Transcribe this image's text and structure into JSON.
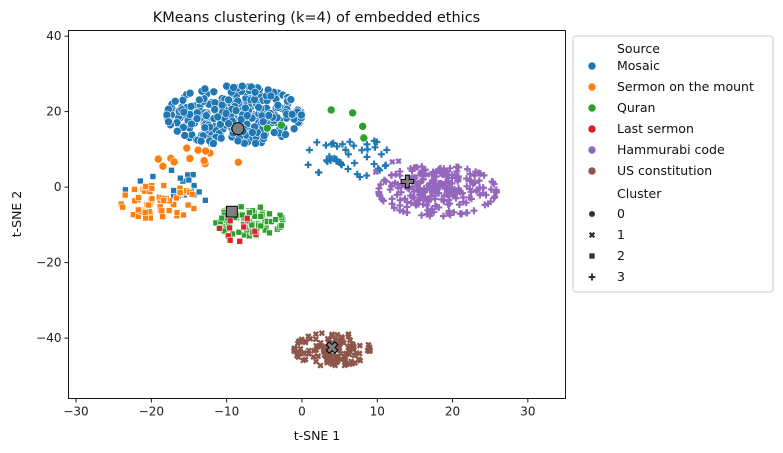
{
  "chart_data": {
    "type": "scatter",
    "title": "KMeans clustering (k=4) of embedded ethics",
    "xlabel": "t-SNE 1",
    "ylabel": "t-SNE 2",
    "xlim": [
      -31,
      35
    ],
    "ylim": [
      -56,
      41.5
    ],
    "xticks": [
      -30,
      -20,
      -10,
      0,
      10,
      20,
      30
    ],
    "yticks": [
      -40,
      -20,
      0,
      20,
      40
    ],
    "grid": false,
    "legend_placement": "outside-right",
    "legend": {
      "source_title": "Source",
      "cluster_title": "Cluster",
      "sources": [
        {
          "name": "Mosaic",
          "color": "#1f77b4"
        },
        {
          "name": "Sermon on the mount",
          "color": "#ff7f0e"
        },
        {
          "name": "Quran",
          "color": "#2ca02c"
        },
        {
          "name": "Last sermon",
          "color": "#d62728"
        },
        {
          "name": "Hammurabi code",
          "color": "#9467bd"
        },
        {
          "name": "US constitution",
          "color": "#8c564b"
        }
      ],
      "clusters": [
        {
          "name": "0",
          "marker": "circle"
        },
        {
          "name": "1",
          "marker": "x"
        },
        {
          "name": "2",
          "marker": "square"
        },
        {
          "name": "3",
          "marker": "plus"
        }
      ]
    },
    "centroids": [
      {
        "cluster": "0",
        "x": -8.5,
        "y": 15.5
      },
      {
        "cluster": "1",
        "x": 4,
        "y": -42.5
      },
      {
        "cluster": "2",
        "x": -9.3,
        "y": -6.5
      },
      {
        "cluster": "3",
        "x": 14,
        "y": 1.5
      }
    ],
    "groups": [
      {
        "source": "Mosaic",
        "cluster": "0",
        "center": [
          -9,
          19
        ],
        "spread": [
          8,
          7
        ],
        "count": 340
      },
      {
        "source": "Mosaic",
        "cluster": "3",
        "center": [
          6,
          8
        ],
        "spread": [
          5,
          5
        ],
        "count": 45
      },
      {
        "source": "Mosaic",
        "cluster": "2",
        "center": [
          -17,
          0
        ],
        "spread": [
          6,
          4
        ],
        "count": 18
      },
      {
        "source": "Sermon on the mount",
        "cluster": "2",
        "center": [
          -19,
          -4
        ],
        "spread": [
          4.5,
          4
        ],
        "count": 75
      },
      {
        "source": "Sermon on the mount",
        "cluster": "0",
        "center": [
          -15,
          7
        ],
        "spread": [
          6,
          3
        ],
        "count": 12
      },
      {
        "source": "Quran",
        "cluster": "2",
        "center": [
          -7,
          -9
        ],
        "spread": [
          4,
          3.5
        ],
        "count": 85
      },
      {
        "source": "Quran",
        "cluster": "0",
        "center": [
          3,
          16
        ],
        "spread": [
          8,
          4
        ],
        "count": 6
      },
      {
        "source": "Last sermon",
        "cluster": "2",
        "center": [
          -8.5,
          -11
        ],
        "spread": [
          2.5,
          3
        ],
        "count": 12
      },
      {
        "source": "Hammurabi code",
        "cluster": "3",
        "center": [
          18,
          -1
        ],
        "spread": [
          7,
          6
        ],
        "count": 230
      },
      {
        "source": "Hammurabi code",
        "cluster": "1",
        "center": [
          15,
          2
        ],
        "spread": [
          5,
          5
        ],
        "count": 22
      },
      {
        "source": "US constitution",
        "cluster": "1",
        "center": [
          4,
          -43
        ],
        "spread": [
          4.5,
          4
        ],
        "count": 140
      }
    ]
  }
}
